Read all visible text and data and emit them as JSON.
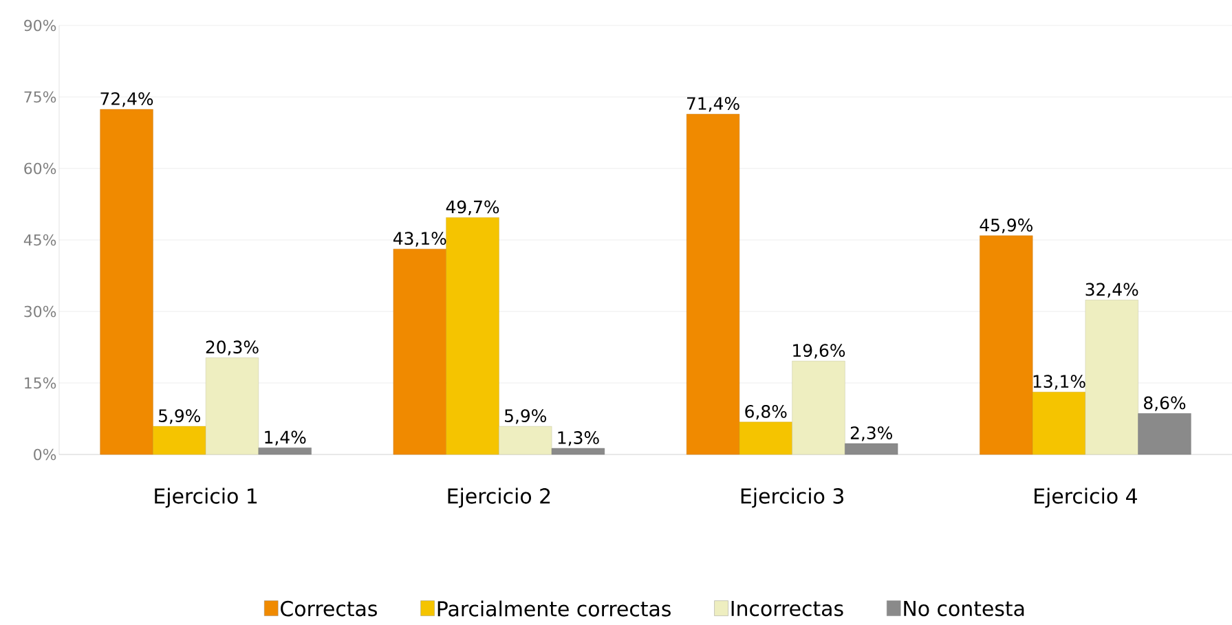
{
  "chart_data": {
    "type": "bar",
    "categories": [
      "Ejercicio 1",
      "Ejercicio 2",
      "Ejercicio 3",
      "Ejercicio 4"
    ],
    "series": [
      {
        "name": "Correctas",
        "color": "#f08a00",
        "values": [
          72.4,
          43.1,
          71.4,
          45.9
        ],
        "value_labels": [
          "72,4%",
          "43,1%",
          "71,4%",
          "45,9%"
        ]
      },
      {
        "name": "Parcialmente correctas",
        "color": "#f5c400",
        "values": [
          5.9,
          49.7,
          6.8,
          13.1
        ],
        "value_labels": [
          "5,9%",
          "49,7%",
          "6,8%",
          "13,1%"
        ]
      },
      {
        "name": "Incorrectas",
        "color": "#eeeec0",
        "values": [
          20.3,
          5.9,
          19.6,
          32.4
        ],
        "value_labels": [
          "20,3%",
          "5,9%",
          "19,6%",
          "32,4%"
        ]
      },
      {
        "name": "No contesta",
        "color": "#8a8a8a",
        "values": [
          1.4,
          1.3,
          2.3,
          8.6
        ],
        "value_labels": [
          "1,4%",
          "1,3%",
          "2,3%",
          "8,6%"
        ]
      }
    ],
    "ylim": [
      0,
      90
    ],
    "yticks": [
      {
        "value": 0,
        "label": "0%"
      },
      {
        "value": 15,
        "label": "15%"
      },
      {
        "value": 30,
        "label": "30%"
      },
      {
        "value": 45,
        "label": "45%"
      },
      {
        "value": 60,
        "label": "60%"
      },
      {
        "value": 75,
        "label": "75%"
      },
      {
        "value": 90,
        "label": "90%"
      }
    ],
    "grid": "y",
    "legend": "bottom"
  }
}
